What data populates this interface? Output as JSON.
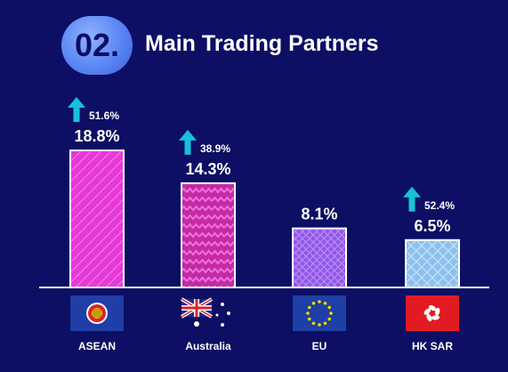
{
  "header": {
    "number": "02.",
    "title": "Main Trading Partners"
  },
  "colors": {
    "background": "#0c0f63",
    "growth_arrow": "#17c2d8",
    "asean_bar": "#e63ad6",
    "australia_bar": "#c42aa6",
    "eu_bar": "#9256e8",
    "hksar_bar": "#8cc0ee"
  },
  "chart_data": {
    "type": "bar",
    "categories": [
      "ASEAN",
      "Australia",
      "EU",
      "HK SAR"
    ],
    "values": [
      18.8,
      14.3,
      8.1,
      6.5
    ],
    "value_labels": [
      "18.8%",
      "14.3%",
      "8.1%",
      "6.5%"
    ],
    "growth": [
      "51.6%",
      "38.9%",
      "",
      "52.4%"
    ],
    "growth_direction": [
      "up",
      "up",
      "",
      "up"
    ],
    "flags": [
      "asean-flag",
      "australia-flag",
      "eu-flag",
      "hong-kong-flag"
    ],
    "ylim": [
      0,
      20
    ],
    "grid": false
  }
}
